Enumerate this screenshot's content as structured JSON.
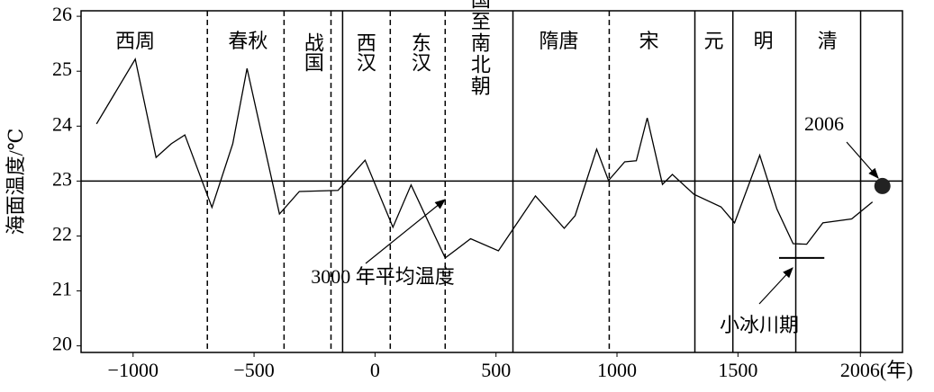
{
  "chart_data": {
    "type": "line",
    "y_label": "海面温度/℃",
    "xlim": [
      -1215,
      2180
    ],
    "ylim": [
      19.88,
      26.1
    ],
    "xticks": [
      {
        "value": -1000,
        "label": "−1000"
      },
      {
        "value": -500,
        "label": "−500"
      },
      0,
      500,
      1000,
      1500,
      {
        "value": 2006,
        "label": "2006(年)"
      }
    ],
    "yticks": [
      20,
      21,
      22,
      23,
      24,
      25,
      26
    ],
    "series": [
      {
        "name": "海面温度",
        "color": "#000000",
        "x": [
          -1151,
          -991,
          -905,
          -842,
          -786,
          -674,
          -588,
          -529,
          -395,
          -313,
          -153,
          -41,
          74,
          149,
          290,
          395,
          510,
          663,
          782,
          827,
          916,
          965,
          1032,
          1080,
          1125,
          1188,
          1229,
          1318,
          1430,
          1486,
          1590,
          1661,
          1728,
          1784,
          1851,
          1970,
          2056
        ],
        "values": [
          24.04,
          25.22,
          23.43,
          23.68,
          23.84,
          22.52,
          23.68,
          25.05,
          22.4,
          22.81,
          22.83,
          23.38,
          22.16,
          22.93,
          21.6,
          21.95,
          21.73,
          22.73,
          22.14,
          22.37,
          23.58,
          23.01,
          23.35,
          23.37,
          24.15,
          22.94,
          23.12,
          22.76,
          22.53,
          22.24,
          23.47,
          22.49,
          21.86,
          21.85,
          22.24,
          22.31,
          22.62
        ]
      }
    ],
    "reference_line": {
      "value": 23,
      "label": "3000 年平均温度"
    },
    "point_2006": {
      "x": 2097,
      "value": 22.91,
      "label": "2006"
    },
    "little_ice_age": {
      "label": "小冰川期",
      "value": 21.6,
      "x": [
        1670,
        1857
      ]
    },
    "dividers": [
      {
        "x": -693,
        "style": "dashed"
      },
      {
        "x": -376,
        "style": "dashed"
      },
      {
        "x": -182,
        "style": "dashed"
      },
      {
        "x": -134,
        "style": "solid"
      },
      {
        "x": 63,
        "style": "dashed"
      },
      {
        "x": 290,
        "style": "dashed"
      },
      {
        "x": 570,
        "style": "solid"
      },
      {
        "x": 968,
        "style": "dashed"
      },
      {
        "x": 1322,
        "style": "solid"
      },
      {
        "x": 1479,
        "style": "solid"
      },
      {
        "x": 1739,
        "style": "solid"
      },
      {
        "x": 2007,
        "style": "solid"
      }
    ],
    "eras": [
      {
        "label": "西周",
        "x": -991
      },
      {
        "label": "春秋",
        "x": -525
      },
      {
        "label": "战国",
        "x": -257
      },
      {
        "label": "西汉",
        "x": -41
      },
      {
        "label": "东汉",
        "x": 186
      },
      {
        "label": "三国至南北朝",
        "x": 432
      },
      {
        "label": "隋唐",
        "x": 760
      },
      {
        "label": "宋",
        "x": 1132
      },
      {
        "label": "元",
        "x": 1400
      },
      {
        "label": "明",
        "x": 1605
      },
      {
        "label": "清",
        "x": 1870
      }
    ]
  }
}
